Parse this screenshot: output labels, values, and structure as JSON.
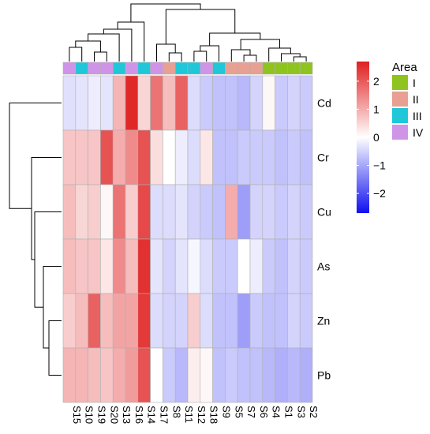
{
  "chart_data": {
    "type": "heatmap",
    "rows": [
      "Cd",
      "Cr",
      "Cu",
      "As",
      "Zn",
      "Pb"
    ],
    "columns": [
      "S15",
      "S10",
      "S19",
      "S20",
      "S13",
      "S16",
      "S14",
      "S17",
      "S8",
      "S11",
      "S12",
      "S18",
      "S9",
      "S5",
      "S7",
      "S6",
      "S4",
      "S1",
      "S3",
      "S2"
    ],
    "column_area": [
      "IV",
      "III",
      "IV",
      "IV",
      "III",
      "IV",
      "III",
      "IV",
      "II",
      "III",
      "III",
      "IV",
      "III",
      "II",
      "II",
      "II",
      "I",
      "I",
      "I",
      "I"
    ],
    "values": [
      [
        -0.35,
        -0.3,
        -0.2,
        -0.3,
        0.9,
        2.6,
        0.5,
        1.7,
        0.8,
        1.9,
        -0.4,
        -0.6,
        -0.7,
        -0.7,
        -0.8,
        -0.5,
        0.1,
        -0.6,
        -0.5,
        -0.6
      ],
      [
        0.7,
        0.7,
        0.7,
        2.1,
        1.0,
        1.4,
        2.1,
        0.4,
        0.0,
        -0.2,
        -0.4,
        0.3,
        -0.7,
        -0.7,
        -0.6,
        -0.6,
        -0.6,
        -0.7,
        -0.6,
        -0.7
      ],
      [
        0.8,
        0.5,
        0.6,
        0.1,
        1.7,
        0.6,
        2.2,
        -0.4,
        -0.4,
        -0.3,
        -0.5,
        -0.6,
        -0.7,
        1.0,
        -1.1,
        -0.5,
        -0.5,
        -0.6,
        -0.5,
        -0.6
      ],
      [
        0.8,
        0.7,
        0.7,
        0.3,
        1.4,
        0.8,
        2.5,
        -0.3,
        -0.5,
        -0.3,
        -0.1,
        -0.4,
        -0.6,
        -0.6,
        0.0,
        -0.2,
        -0.6,
        -0.7,
        -0.5,
        -0.6
      ],
      [
        0.6,
        0.8,
        1.9,
        0.8,
        1.1,
        1.1,
        2.4,
        -0.4,
        -0.5,
        -0.5,
        0.6,
        -0.4,
        -0.7,
        -0.7,
        -1.1,
        -0.6,
        -0.7,
        -0.7,
        -0.5,
        -0.6
      ],
      [
        0.9,
        0.9,
        0.8,
        0.7,
        1.0,
        1.2,
        2.1,
        0.0,
        -0.6,
        -0.8,
        0.2,
        0.1,
        -0.7,
        -0.6,
        -0.7,
        -0.7,
        -0.8,
        -0.9,
        -0.8,
        -0.9
      ]
    ],
    "color_scale": {
      "min": -2.7,
      "max": 2.7,
      "colors": [
        "#1010f0",
        "#ffffff",
        "#e02020"
      ],
      "ticks": [
        2,
        1,
        0,
        -1,
        -2
      ],
      "tick_labels": [
        "2",
        "1",
        "0",
        "−1",
        "−2"
      ]
    },
    "legend": {
      "title": "Area",
      "items": [
        {
          "label": "I",
          "color": "#8fc31f"
        },
        {
          "label": "II",
          "color": "#e8a093"
        },
        {
          "label": "III",
          "color": "#1fc7d9"
        },
        {
          "label": "IV",
          "color": "#cf94e8"
        }
      ]
    },
    "dendrogram": {
      "rows": "hierarchical clustering tree drawn left of rows",
      "columns": "hierarchical clustering tree drawn above columns"
    }
  }
}
